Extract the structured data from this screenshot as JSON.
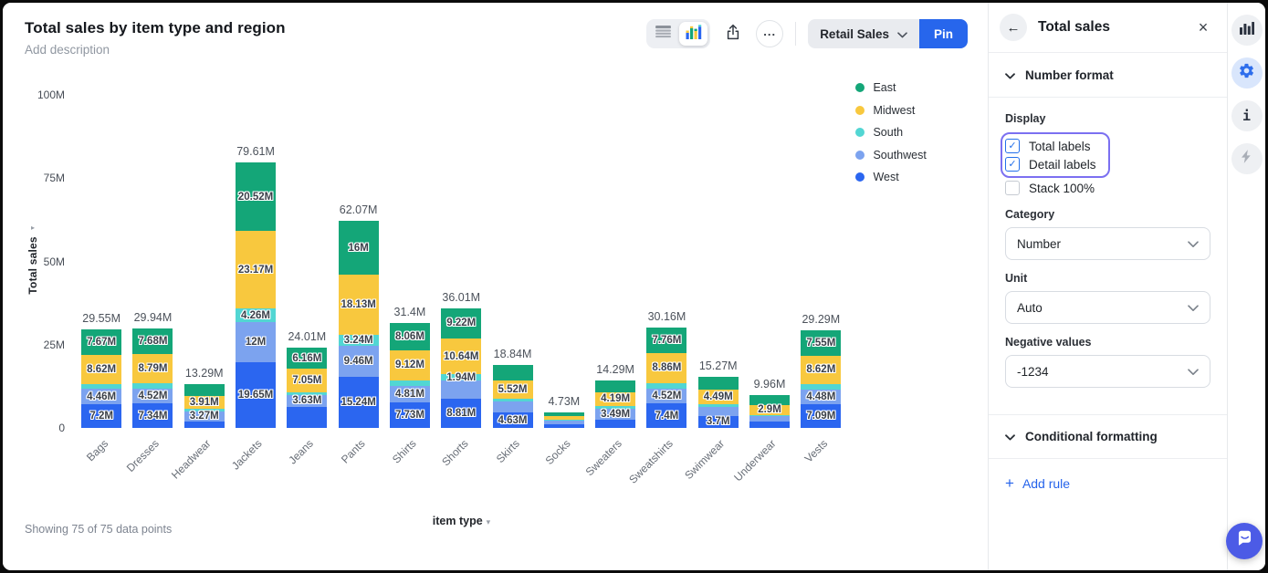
{
  "header": {
    "title": "Total sales by item type and region",
    "description": "Add description"
  },
  "toolbar": {
    "dataset_button": "Retail Sales",
    "pin_button": "Pin"
  },
  "colors": {
    "accent_blue": "#2766ec",
    "focus_ring": "#7b70f1",
    "add_rule_blue": "#2563eb",
    "chat_bubble": "#4c5be6"
  },
  "chart_data": {
    "type": "bar",
    "variant": "stacked-vertical",
    "title": "Total sales by item type and region",
    "xlabel": "item type",
    "ylabel": "Total sales",
    "ylim": [
      0,
      100
    ],
    "unit": "M",
    "grid": false,
    "legend_position": "right",
    "y_ticks": [
      {
        "label": "0",
        "value": 0
      },
      {
        "label": "25M",
        "value": 25
      },
      {
        "label": "50M",
        "value": 50
      },
      {
        "label": "75M",
        "value": 75
      },
      {
        "label": "100M",
        "value": 100
      }
    ],
    "stack_order_bottom_to_top": [
      "West",
      "Southwest",
      "South",
      "Midwest",
      "East"
    ],
    "colors": {
      "East": "#14a678",
      "Midwest": "#f8c83e",
      "South": "#52d6d3",
      "Southwest": "#7ca3ef",
      "West": "#2b66f0"
    },
    "legend": [
      {
        "name": "East",
        "color": "#14a678"
      },
      {
        "name": "Midwest",
        "color": "#f8c83e"
      },
      {
        "name": "South",
        "color": "#52d6d3"
      },
      {
        "name": "Southwest",
        "color": "#7ca3ef"
      },
      {
        "name": "West",
        "color": "#2b66f0"
      }
    ],
    "bars": [
      {
        "category": "Bags",
        "total": 29.55,
        "total_label": "29.55M",
        "segments": [
          {
            "region": "West",
            "value": 7.2,
            "label": "7.2M"
          },
          {
            "region": "Southwest",
            "value": 4.46,
            "label": "4.46M"
          },
          {
            "region": "South",
            "value": 1.6,
            "label": ""
          },
          {
            "region": "Midwest",
            "value": 8.62,
            "label": "8.62M"
          },
          {
            "region": "East",
            "value": 7.67,
            "label": "7.67M"
          }
        ]
      },
      {
        "category": "Dresses",
        "total": 29.94,
        "total_label": "29.94M",
        "segments": [
          {
            "region": "West",
            "value": 7.34,
            "label": "7.34M"
          },
          {
            "region": "Southwest",
            "value": 4.52,
            "label": "4.52M"
          },
          {
            "region": "South",
            "value": 1.61,
            "label": ""
          },
          {
            "region": "Midwest",
            "value": 8.79,
            "label": "8.79M"
          },
          {
            "region": "East",
            "value": 7.68,
            "label": "7.68M"
          }
        ]
      },
      {
        "category": "Headwear",
        "total": 13.29,
        "total_label": "13.29M",
        "segments": [
          {
            "region": "West",
            "value": 1.8,
            "label": ""
          },
          {
            "region": "Southwest",
            "value": 3.27,
            "label": "3.27M"
          },
          {
            "region": "South",
            "value": 0.71,
            "label": ""
          },
          {
            "region": "Midwest",
            "value": 3.91,
            "label": "3.91M"
          },
          {
            "region": "East",
            "value": 3.6,
            "label": ""
          }
        ]
      },
      {
        "category": "Jackets",
        "total": 79.61,
        "total_label": "79.61M",
        "segments": [
          {
            "region": "West",
            "value": 19.65,
            "label": "19.65M"
          },
          {
            "region": "Southwest",
            "value": 12,
            "label": "12M"
          },
          {
            "region": "South",
            "value": 4.26,
            "label": "4.26M"
          },
          {
            "region": "Midwest",
            "value": 23.17,
            "label": "23.17M"
          },
          {
            "region": "East",
            "value": 20.52,
            "label": "20.52M"
          }
        ]
      },
      {
        "category": "Jeans",
        "total": 24.01,
        "total_label": "24.01M",
        "segments": [
          {
            "region": "West",
            "value": 6.32,
            "label": ""
          },
          {
            "region": "Southwest",
            "value": 3.63,
            "label": "3.63M"
          },
          {
            "region": "South",
            "value": 0.85,
            "label": ""
          },
          {
            "region": "Midwest",
            "value": 7.05,
            "label": "7.05M"
          },
          {
            "region": "East",
            "value": 6.16,
            "label": "6.16M"
          }
        ]
      },
      {
        "category": "Pants",
        "total": 62.07,
        "total_label": "62.07M",
        "segments": [
          {
            "region": "West",
            "value": 15.24,
            "label": "15.24M"
          },
          {
            "region": "Southwest",
            "value": 9.46,
            "label": "9.46M"
          },
          {
            "region": "South",
            "value": 3.24,
            "label": "3.24M"
          },
          {
            "region": "Midwest",
            "value": 18.13,
            "label": "18.13M"
          },
          {
            "region": "East",
            "value": 16,
            "label": "16M"
          }
        ]
      },
      {
        "category": "Shirts",
        "total": 31.4,
        "total_label": "31.4M",
        "segments": [
          {
            "region": "West",
            "value": 7.73,
            "label": "7.73M"
          },
          {
            "region": "Southwest",
            "value": 4.81,
            "label": "4.81M"
          },
          {
            "region": "South",
            "value": 1.68,
            "label": ""
          },
          {
            "region": "Midwest",
            "value": 9.12,
            "label": "9.12M"
          },
          {
            "region": "East",
            "value": 8.06,
            "label": "8.06M"
          }
        ]
      },
      {
        "category": "Shorts",
        "total": 36.01,
        "total_label": "36.01M",
        "segments": [
          {
            "region": "West",
            "value": 8.81,
            "label": "8.81M"
          },
          {
            "region": "Southwest",
            "value": 5.4,
            "label": ""
          },
          {
            "region": "South",
            "value": 1.94,
            "label": "1.94M"
          },
          {
            "region": "Midwest",
            "value": 10.64,
            "label": "10.64M"
          },
          {
            "region": "East",
            "value": 9.22,
            "label": "9.22M"
          }
        ]
      },
      {
        "category": "Skirts",
        "total": 18.84,
        "total_label": "18.84M",
        "segments": [
          {
            "region": "West",
            "value": 4.63,
            "label": "4.63M"
          },
          {
            "region": "Southwest",
            "value": 3.3,
            "label": ""
          },
          {
            "region": "South",
            "value": 0.8,
            "label": ""
          },
          {
            "region": "Midwest",
            "value": 5.52,
            "label": "5.52M"
          },
          {
            "region": "East",
            "value": 4.59,
            "label": ""
          }
        ]
      },
      {
        "category": "Socks",
        "total": 4.73,
        "total_label": "4.73M",
        "segments": [
          {
            "region": "West",
            "value": 1.2,
            "label": ""
          },
          {
            "region": "Southwest",
            "value": 0.9,
            "label": ""
          },
          {
            "region": "South",
            "value": 0.32,
            "label": ""
          },
          {
            "region": "Midwest",
            "value": 1.2,
            "label": ""
          },
          {
            "region": "East",
            "value": 1.11,
            "label": ""
          }
        ]
      },
      {
        "category": "Sweaters",
        "total": 14.29,
        "total_label": "14.29M",
        "segments": [
          {
            "region": "West",
            "value": 2.4,
            "label": ""
          },
          {
            "region": "Southwest",
            "value": 3.49,
            "label": "3.49M"
          },
          {
            "region": "South",
            "value": 0.7,
            "label": ""
          },
          {
            "region": "Midwest",
            "value": 4.19,
            "label": "4.19M"
          },
          {
            "region": "East",
            "value": 3.51,
            "label": ""
          }
        ]
      },
      {
        "category": "Sweatshirts",
        "total": 30.16,
        "total_label": "30.16M",
        "segments": [
          {
            "region": "West",
            "value": 7.4,
            "label": "7.4M"
          },
          {
            "region": "Southwest",
            "value": 4.52,
            "label": "4.52M"
          },
          {
            "region": "South",
            "value": 1.62,
            "label": ""
          },
          {
            "region": "Midwest",
            "value": 8.86,
            "label": "8.86M"
          },
          {
            "region": "East",
            "value": 7.76,
            "label": "7.76M"
          }
        ]
      },
      {
        "category": "Swimwear",
        "total": 15.27,
        "total_label": "15.27M",
        "segments": [
          {
            "region": "West",
            "value": 3.7,
            "label": "3.7M"
          },
          {
            "region": "Southwest",
            "value": 2.7,
            "label": ""
          },
          {
            "region": "South",
            "value": 0.6,
            "label": ""
          },
          {
            "region": "Midwest",
            "value": 4.49,
            "label": "4.49M"
          },
          {
            "region": "East",
            "value": 3.78,
            "label": ""
          }
        ]
      },
      {
        "category": "Underwear",
        "total": 9.96,
        "total_label": "9.96M",
        "segments": [
          {
            "region": "West",
            "value": 2.0,
            "label": ""
          },
          {
            "region": "Southwest",
            "value": 1.5,
            "label": ""
          },
          {
            "region": "South",
            "value": 0.4,
            "label": ""
          },
          {
            "region": "Midwest",
            "value": 2.9,
            "label": "2.9M"
          },
          {
            "region": "East",
            "value": 3.16,
            "label": ""
          }
        ]
      },
      {
        "category": "Vests",
        "total": 29.29,
        "total_label": "29.29M",
        "segments": [
          {
            "region": "West",
            "value": 7.09,
            "label": "7.09M"
          },
          {
            "region": "Southwest",
            "value": 4.48,
            "label": "4.48M"
          },
          {
            "region": "South",
            "value": 1.55,
            "label": ""
          },
          {
            "region": "Midwest",
            "value": 8.62,
            "label": "8.62M"
          },
          {
            "region": "East",
            "value": 7.55,
            "label": "7.55M"
          }
        ]
      }
    ]
  },
  "footer": {
    "showing_text": "Showing 75 of 75 data points"
  },
  "panel": {
    "title": "Total sales",
    "number_format": {
      "section_title": "Number format",
      "display_label": "Display",
      "checkboxes": [
        {
          "label": "Total labels",
          "checked": true,
          "ring": true
        },
        {
          "label": "Detail labels",
          "checked": true,
          "ring": true
        },
        {
          "label": "Stack 100%",
          "checked": false,
          "ring": false
        }
      ],
      "category_label": "Category",
      "category_value": "Number",
      "unit_label": "Unit",
      "unit_value": "Auto",
      "negative_label": "Negative values",
      "negative_value": "-1234"
    },
    "conditional_formatting": {
      "section_title": "Conditional formatting",
      "add_rule_label": "Add rule"
    }
  }
}
